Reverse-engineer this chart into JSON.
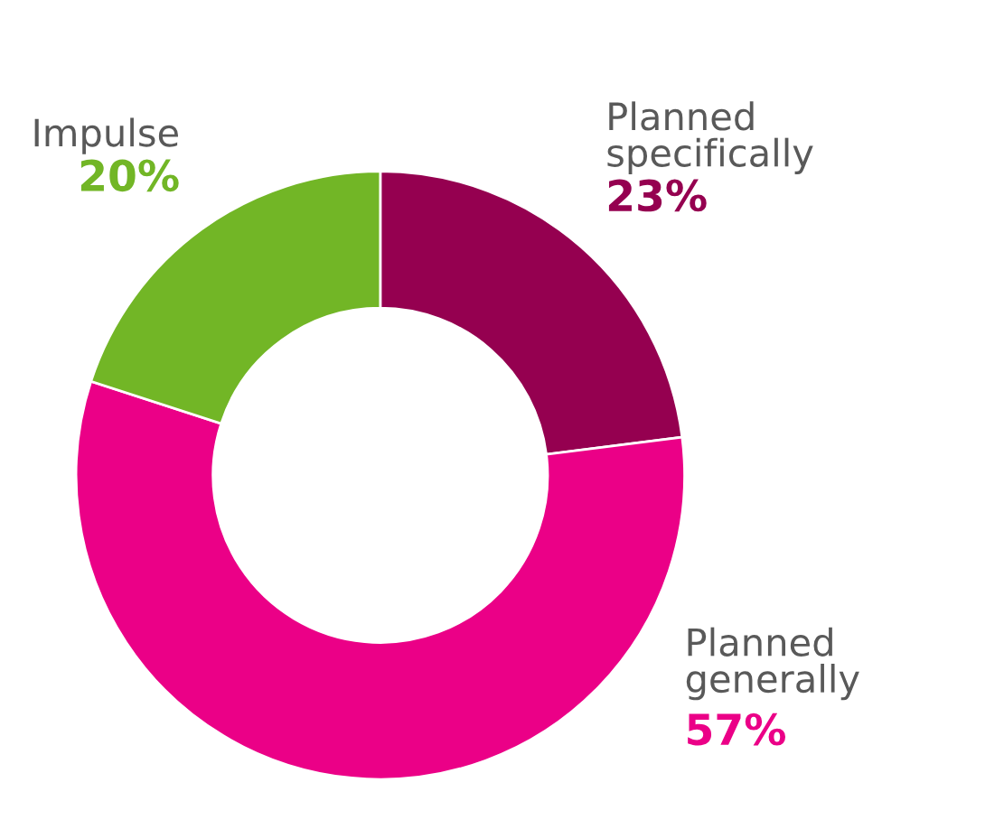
{
  "chart_data": {
    "type": "donut",
    "categories": [
      "Planned\nspecifically",
      "Planned\ngenerally",
      "Impulse"
    ],
    "values": [
      23,
      57,
      20
    ],
    "colors": [
      "#950050",
      "#eb0087",
      "#72b626"
    ],
    "value_labels": [
      "23%",
      "57%",
      "20%"
    ],
    "legend": false
  }
}
